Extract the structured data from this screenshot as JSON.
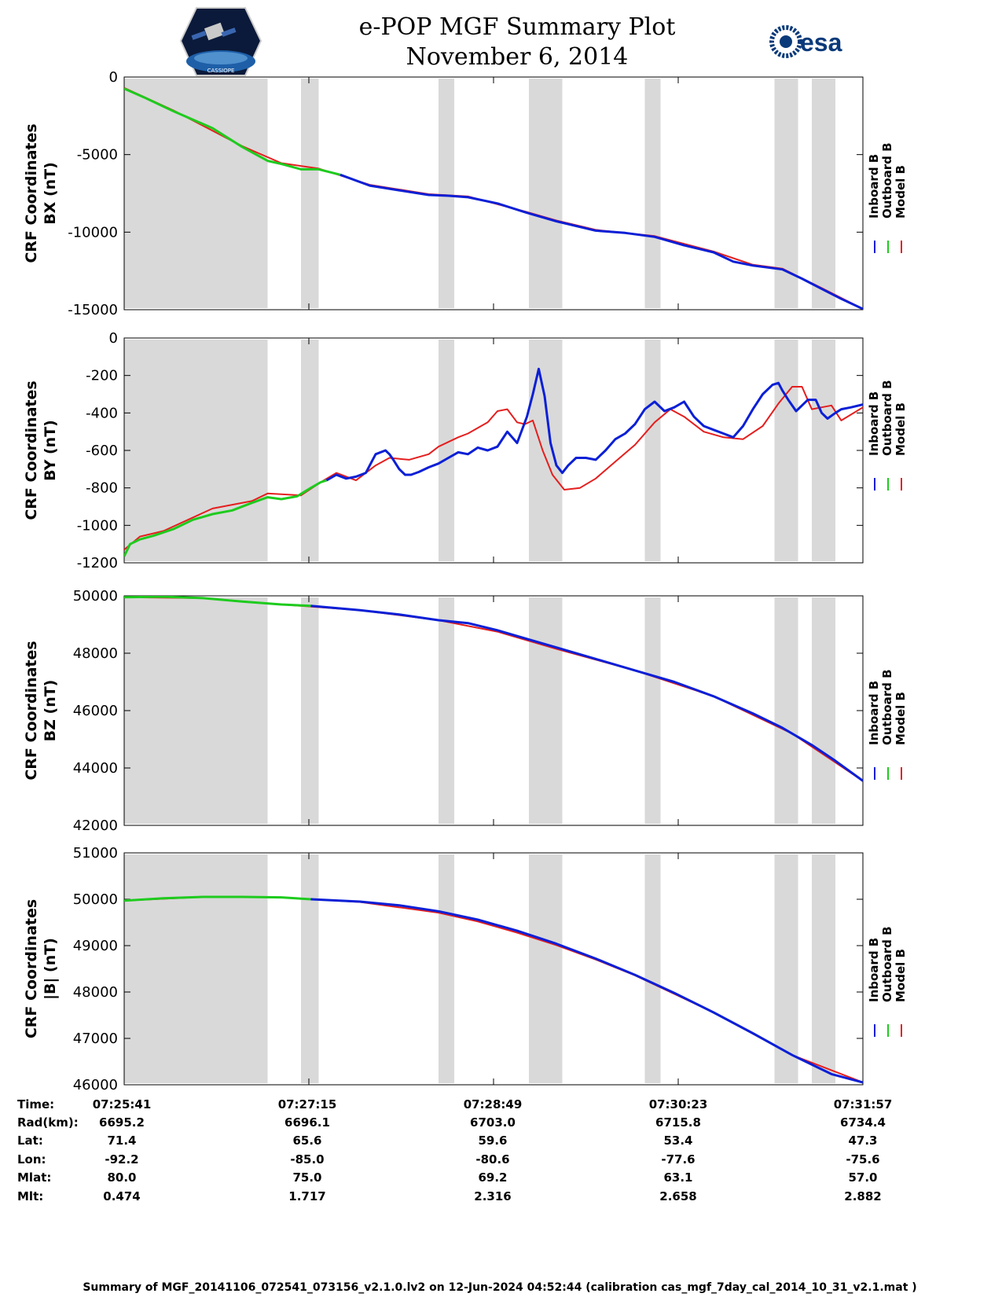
{
  "header": {
    "title": "e-POP MGF Summary Plot",
    "date": "November 6, 2014",
    "esa_logo_text": "esa",
    "logo_caption": "CASSIOPE"
  },
  "colors": {
    "inboard": "#0a1fd6",
    "outboard": "#1ecb1e",
    "model": "#e51e1e",
    "shade": "#d9d9d9"
  },
  "legend": [
    "Inboard B",
    "Outboard B",
    "Model B"
  ],
  "chart_data": [
    {
      "type": "line",
      "title": "",
      "ylabel_line1": "CRF Coordinates",
      "ylabel_line2": "BX (nT)",
      "ylim": [
        -15000,
        0
      ],
      "yticks": [
        0,
        -5000,
        -10000,
        -15000
      ],
      "xlim": [
        0,
        376
      ],
      "xticks": [
        0,
        94,
        188,
        282,
        376
      ],
      "shaded": [
        [
          0,
          73
        ],
        [
          90,
          99
        ],
        [
          160,
          168
        ],
        [
          206,
          223
        ],
        [
          265,
          273
        ],
        [
          331,
          343
        ],
        [
          350,
          362
        ]
      ],
      "outboard": {
        "x": [
          0,
          10,
          25,
          45,
          60,
          73,
          80,
          90,
          99,
          110
        ],
        "y": [
          -750,
          -1300,
          -2200,
          -3300,
          -4500,
          -5400,
          -5600,
          -5950,
          -5950,
          -6300
        ]
      },
      "inboard": {
        "x": [
          110,
          125,
          140,
          155,
          165,
          175,
          190,
          205,
          220,
          240,
          255,
          270,
          285,
          300,
          310,
          320,
          335,
          345,
          355,
          365,
          376
        ],
        "y": [
          -6300,
          -7000,
          -7300,
          -7600,
          -7650,
          -7750,
          -8150,
          -8750,
          -9300,
          -9900,
          -10050,
          -10300,
          -10850,
          -11300,
          -11900,
          -12150,
          -12400,
          -13000,
          -13650,
          -14300,
          -14950
        ]
      },
      "model": {
        "x": [
          0,
          25,
          60,
          80,
          99,
          125,
          155,
          175,
          205,
          220,
          240,
          270,
          300,
          320,
          335,
          355,
          376
        ],
        "y": [
          -700,
          -2150,
          -4450,
          -5550,
          -5900,
          -6950,
          -7550,
          -7700,
          -8700,
          -9250,
          -9850,
          -10250,
          -11250,
          -12100,
          -12350,
          -13600,
          -14950
        ]
      }
    },
    {
      "type": "line",
      "title": "",
      "ylabel_line1": "CRF Coordinates",
      "ylabel_line2": "BY (nT)",
      "ylim": [
        -1200,
        0
      ],
      "yticks": [
        0,
        -200,
        -400,
        -600,
        -800,
        -1000,
        -1200
      ],
      "xlim": [
        0,
        376
      ],
      "xticks": [
        0,
        94,
        188,
        282,
        376
      ],
      "shaded": [
        [
          0,
          73
        ],
        [
          90,
          99
        ],
        [
          160,
          168
        ],
        [
          206,
          223
        ],
        [
          265,
          273
        ],
        [
          331,
          343
        ],
        [
          350,
          362
        ]
      ],
      "outboard": {
        "x": [
          0,
          3,
          8,
          15,
          25,
          35,
          45,
          55,
          65,
          73,
          80,
          88,
          95,
          100,
          103
        ],
        "y": [
          -1165,
          -1100,
          -1075,
          -1055,
          -1020,
          -970,
          -940,
          -920,
          -880,
          -850,
          -860,
          -845,
          -800,
          -770,
          -760
        ]
      },
      "inboard": {
        "x": [
          103,
          108,
          113,
          118,
          123,
          128,
          133,
          135,
          137,
          140,
          143,
          146,
          150,
          155,
          160,
          165,
          170,
          175,
          180,
          185,
          190,
          195,
          200,
          205,
          208,
          211,
          214,
          217,
          220,
          223,
          226,
          230,
          235,
          240,
          245,
          250,
          255,
          260,
          265,
          270,
          275,
          280,
          285,
          290,
          295,
          300,
          305,
          310,
          315,
          320,
          325,
          330,
          333,
          335,
          338,
          342,
          345,
          348,
          352,
          355,
          358,
          362,
          365,
          370,
          376
        ],
        "y": [
          -760,
          -730,
          -750,
          -740,
          -720,
          -620,
          -600,
          -620,
          -650,
          -700,
          -730,
          -730,
          -715,
          -690,
          -670,
          -640,
          -610,
          -620,
          -585,
          -600,
          -580,
          -500,
          -560,
          -420,
          -300,
          -165,
          -310,
          -560,
          -680,
          -720,
          -680,
          -640,
          -640,
          -650,
          -600,
          -540,
          -510,
          -460,
          -380,
          -340,
          -390,
          -370,
          -340,
          -420,
          -470,
          -490,
          -510,
          -530,
          -470,
          -380,
          -300,
          -250,
          -240,
          -280,
          -330,
          -390,
          -360,
          -330,
          -330,
          -400,
          -430,
          -400,
          -380,
          -370,
          -355
        ]
      },
      "model": {
        "x": [
          0,
          8,
          20,
          45,
          65,
          73,
          90,
          100,
          108,
          118,
          128,
          135,
          145,
          155,
          160,
          170,
          175,
          185,
          190,
          195,
          200,
          204,
          208,
          213,
          218,
          224,
          232,
          240,
          250,
          260,
          270,
          278,
          285,
          295,
          305,
          315,
          325,
          333,
          340,
          345,
          350,
          355,
          360,
          365,
          376
        ],
        "y": [
          -1130,
          -1060,
          -1030,
          -910,
          -870,
          -830,
          -840,
          -770,
          -720,
          -760,
          -680,
          -640,
          -650,
          -620,
          -580,
          -530,
          -510,
          -450,
          -390,
          -380,
          -450,
          -460,
          -440,
          -600,
          -730,
          -810,
          -800,
          -750,
          -660,
          -570,
          -450,
          -380,
          -420,
          -500,
          -530,
          -540,
          -470,
          -350,
          -260,
          -260,
          -380,
          -370,
          -360,
          -440,
          -370
        ]
      }
    },
    {
      "type": "line",
      "title": "",
      "ylabel_line1": "CRF Coordinates",
      "ylabel_line2": "BZ (nT)",
      "ylim": [
        42000,
        50000
      ],
      "yticks": [
        50000,
        48000,
        46000,
        44000,
        42000
      ],
      "xlim": [
        0,
        376
      ],
      "xticks": [
        0,
        94,
        188,
        282,
        376
      ],
      "shaded": [
        [
          0,
          73
        ],
        [
          90,
          99
        ],
        [
          160,
          168
        ],
        [
          206,
          223
        ],
        [
          265,
          273
        ],
        [
          331,
          343
        ],
        [
          350,
          362
        ]
      ],
      "outboard": {
        "x": [
          0,
          20,
          40,
          60,
          80,
          95
        ],
        "y": [
          49950,
          49970,
          49920,
          49800,
          49700,
          49650
        ]
      },
      "inboard": {
        "x": [
          95,
          120,
          140,
          160,
          175,
          190,
          205,
          220,
          240,
          260,
          280,
          300,
          320,
          335,
          350,
          362,
          376
        ],
        "y": [
          49650,
          49500,
          49350,
          49150,
          49050,
          48800,
          48500,
          48200,
          47800,
          47400,
          47000,
          46500,
          45900,
          45400,
          44800,
          44250,
          43550
        ]
      },
      "model": {
        "x": [
          0,
          40,
          80,
          120,
          160,
          190,
          220,
          260,
          300,
          340,
          376
        ],
        "y": [
          49950,
          49920,
          49700,
          49500,
          49150,
          48750,
          48150,
          47400,
          46500,
          45200,
          43550
        ]
      }
    },
    {
      "type": "line",
      "title": "",
      "ylabel_line1": "CRF Coordinates",
      "ylabel_line2": "|B| (nT)",
      "ylim": [
        46000,
        51000
      ],
      "yticks": [
        51000,
        50000,
        49000,
        48000,
        47000,
        46000
      ],
      "xlim": [
        0,
        376
      ],
      "xticks": [
        0,
        94,
        188,
        282,
        376
      ],
      "shaded": [
        [
          0,
          73
        ],
        [
          90,
          99
        ],
        [
          160,
          168
        ],
        [
          206,
          223
        ],
        [
          265,
          273
        ],
        [
          331,
          343
        ],
        [
          350,
          362
        ]
      ],
      "outboard": {
        "x": [
          0,
          20,
          40,
          60,
          80,
          95
        ],
        "y": [
          49970,
          50020,
          50050,
          50050,
          50040,
          50000
        ]
      },
      "inboard": {
        "x": [
          95,
          120,
          140,
          160,
          180,
          200,
          220,
          240,
          260,
          280,
          300,
          320,
          340,
          360,
          376
        ],
        "y": [
          50000,
          49950,
          49870,
          49740,
          49560,
          49320,
          49040,
          48720,
          48370,
          47980,
          47560,
          47110,
          46640,
          46230,
          46050
        ]
      },
      "model": {
        "x": [
          0,
          40,
          80,
          120,
          160,
          180,
          200,
          220,
          240,
          260,
          300,
          340,
          376
        ],
        "y": [
          49970,
          50050,
          50040,
          49940,
          49710,
          49520,
          49280,
          49010,
          48700,
          48360,
          47560,
          46640,
          46050
        ]
      }
    }
  ],
  "ephemeris": {
    "labels": [
      "Time:",
      "Rad(km):",
      "Lat:",
      "Lon:",
      "Mlat:",
      "Mlt:"
    ],
    "columns": [
      [
        "07:25:41",
        "6695.2",
        "71.4",
        "-92.2",
        "80.0",
        "0.474"
      ],
      [
        "07:27:15",
        "6696.1",
        "65.6",
        "-85.0",
        "75.0",
        "1.717"
      ],
      [
        "07:28:49",
        "6703.0",
        "59.6",
        "-80.6",
        "69.2",
        "2.316"
      ],
      [
        "07:30:23",
        "6715.8",
        "53.4",
        "-77.6",
        "63.1",
        "2.658"
      ],
      [
        "07:31:57",
        "6734.4",
        "47.3",
        "-75.6",
        "57.0",
        "2.882"
      ]
    ]
  },
  "footer": "Summary of MGF_20141106_072541_073156_v2.1.0.lv2 on 12-Jun-2024 04:52:44 (calibration cas_mgf_7day_cal_2014_10_31_v2.1.mat )"
}
